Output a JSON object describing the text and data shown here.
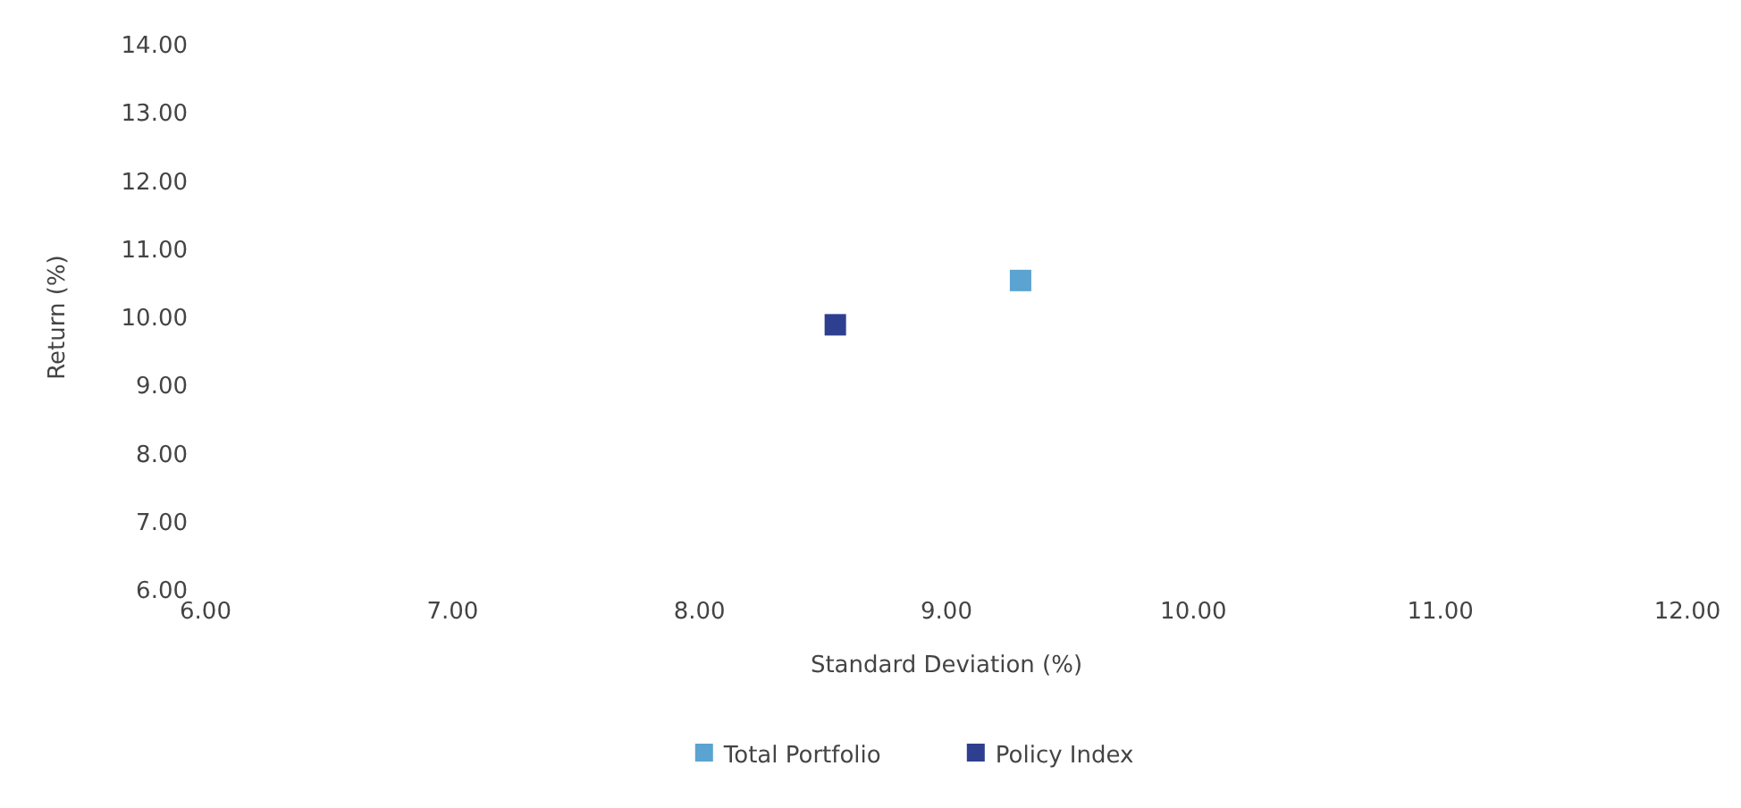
{
  "chart_data": {
    "type": "scatter",
    "xlabel": "Standard Deviation (%)",
    "ylabel": "Return (%)",
    "xlim": [
      6,
      12
    ],
    "xticks": [
      {
        "value": 6,
        "label": "6.00"
      },
      {
        "value": 7,
        "label": "7.00"
      },
      {
        "value": 8,
        "label": "8.00"
      },
      {
        "value": 9,
        "label": "9.00"
      },
      {
        "value": 10,
        "label": "10.00"
      },
      {
        "value": 11,
        "label": "11.00"
      },
      {
        "value": 12,
        "label": "12.00"
      }
    ],
    "ylim": [
      6,
      14
    ],
    "yticks": [
      {
        "value": 6,
        "label": "6.00"
      },
      {
        "value": 7,
        "label": "7.00"
      },
      {
        "value": 8,
        "label": "8.00"
      },
      {
        "value": 9,
        "label": "9.00"
      },
      {
        "value": 10,
        "label": "10.00"
      },
      {
        "value": 11,
        "label": "11.00"
      },
      {
        "value": 12,
        "label": "12.00"
      },
      {
        "value": 13,
        "label": "13.00"
      },
      {
        "value": 14,
        "label": "14.00"
      }
    ],
    "series": [
      {
        "name": "Total Portfolio",
        "color": "#5ba3d0",
        "x": [
          9.3
        ],
        "values": [
          10.54
        ]
      },
      {
        "name": "Policy Index",
        "color": "#2e3f8f",
        "x": [
          8.55
        ],
        "values": [
          9.89
        ]
      }
    ],
    "marker": "square",
    "legend": "bottom"
  }
}
